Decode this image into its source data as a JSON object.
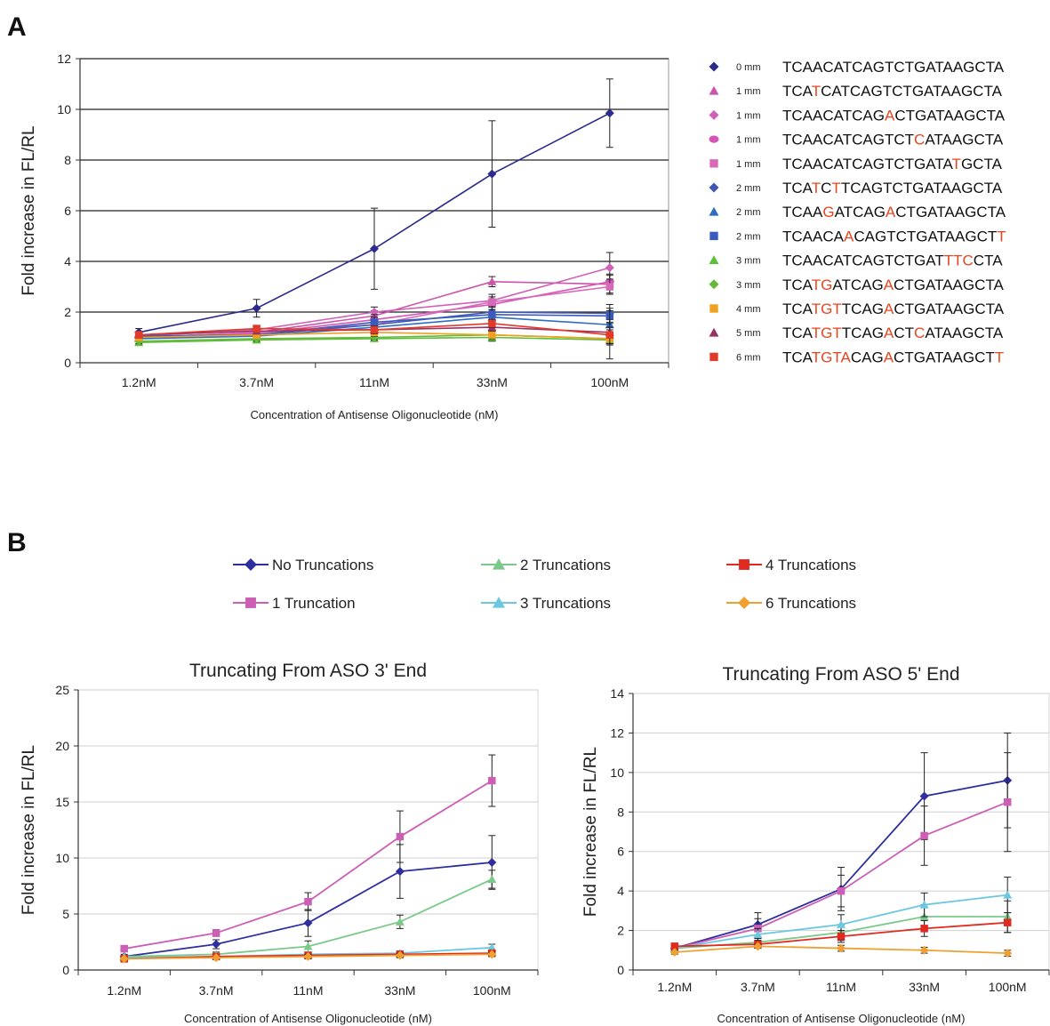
{
  "panels": {
    "a": "A",
    "b": "B"
  },
  "chart_data": [
    {
      "type": "line",
      "panel": "A",
      "title": "",
      "xlabel": "Concentration of Antisense Oligonucleotide (nM)",
      "ylabel": "Fold increase in FL/RL",
      "categories": [
        "1.2nM",
        "3.7nM",
        "11nM",
        "33nM",
        "100nM"
      ],
      "ylim": [
        0,
        12
      ],
      "yticks": [
        0,
        2,
        4,
        6,
        8,
        10,
        12
      ],
      "grid": true,
      "legend_position": "right",
      "series": [
        {
          "name": "0 mm",
          "sequence": "TCAACATCAGTCTGATAAGCTA",
          "mismatch_positions": [],
          "marker": "diamond",
          "color": "#2b2b8c",
          "values": [
            1.2,
            2.15,
            4.5,
            7.45,
            9.85
          ],
          "errors": [
            0.15,
            0.35,
            1.6,
            2.1,
            1.35
          ]
        },
        {
          "name": "1 mm",
          "sequence": "TCATCATCAGTCTGATAAGCTA",
          "mismatch_positions": [
            3
          ],
          "marker": "triangle",
          "color": "#cc55aa",
          "values": [
            1.0,
            1.2,
            1.85,
            3.2,
            3.1
          ],
          "errors": [
            0.1,
            0.15,
            0.2,
            0.2,
            0.35
          ]
        },
        {
          "name": "1 mm",
          "sequence": "TCAACATCAGACTGATAAGCTA",
          "mismatch_positions": [
            10
          ],
          "marker": "diamond",
          "color": "#d060b8",
          "values": [
            1.05,
            1.3,
            2.0,
            2.45,
            3.75
          ],
          "errors": [
            0.1,
            0.15,
            0.2,
            0.25,
            0.6
          ]
        },
        {
          "name": "1 mm",
          "sequence": "TCAACATCAGTCTCATAAGCTA",
          "mismatch_positions": [
            13
          ],
          "marker": "circle",
          "color": "#d455b5",
          "values": [
            1.0,
            1.15,
            1.7,
            2.3,
            3.2
          ],
          "errors": [
            0.1,
            0.15,
            0.2,
            0.2,
            0.3
          ]
        },
        {
          "name": "1 mm",
          "sequence": "TCAACATCAGTCTGATATGCTA",
          "mismatch_positions": [
            17
          ],
          "marker": "square",
          "color": "#d66ab8",
          "values": [
            1.0,
            1.2,
            1.5,
            2.4,
            3.0
          ],
          "errors": [
            0.1,
            0.15,
            0.2,
            0.2,
            0.3
          ]
        },
        {
          "name": "2 mm",
          "sequence": "TCATCTTCAGTCTGATAAGCTA",
          "mismatch_positions": [
            3,
            5
          ],
          "marker": "diamond",
          "color": "#3f57b5",
          "values": [
            1.0,
            1.1,
            1.5,
            2.0,
            1.95
          ],
          "errors": [
            0.1,
            0.15,
            0.2,
            0.2,
            0.35
          ]
        },
        {
          "name": "2 mm",
          "sequence": "TCAAGATCAGACTGATAAGCTA",
          "mismatch_positions": [
            4,
            10
          ],
          "marker": "triangle",
          "color": "#2c6fc0",
          "values": [
            0.95,
            1.05,
            1.4,
            1.8,
            1.5
          ],
          "errors": [
            0.1,
            0.1,
            0.15,
            0.2,
            0.2
          ]
        },
        {
          "name": "2 mm",
          "sequence": "TCAACAACAGTCTGATAAGCTT",
          "mismatch_positions": [
            6,
            21
          ],
          "marker": "square",
          "color": "#3a5bbd",
          "values": [
            1.05,
            1.1,
            1.6,
            1.9,
            1.85
          ],
          "errors": [
            0.1,
            0.1,
            0.2,
            0.2,
            0.3
          ]
        },
        {
          "name": "3 mm",
          "sequence": "TCAACATCAGTCTGATTTCCTA",
          "mismatch_positions": [
            16,
            17,
            18
          ],
          "marker": "triangle",
          "color": "#5bbf3a",
          "values": [
            0.8,
            0.9,
            0.95,
            1.0,
            0.9
          ],
          "errors": [
            0.1,
            0.1,
            0.1,
            0.15,
            0.2
          ]
        },
        {
          "name": "3 mm",
          "sequence": "TCATGATCAGACTGATAAGCTA",
          "mismatch_positions": [
            3,
            4,
            10
          ],
          "marker": "diamond",
          "color": "#68b83a",
          "values": [
            0.85,
            0.95,
            1.0,
            1.1,
            0.95
          ],
          "errors": [
            0.1,
            0.1,
            0.1,
            0.15,
            0.2
          ]
        },
        {
          "name": "4 mm",
          "sequence": "TCATGTTCAGACTGATAAGCTA",
          "mismatch_positions": [
            3,
            4,
            5,
            10
          ],
          "marker": "square",
          "color": "#f0a020",
          "values": [
            1.0,
            1.1,
            1.2,
            1.1,
            0.95
          ],
          "errors": [
            0.1,
            0.1,
            0.15,
            0.15,
            0.2
          ]
        },
        {
          "name": "5 mm",
          "sequence": "TCATGTTCAGACTCATAAGCTA",
          "mismatch_positions": [
            3,
            4,
            5,
            10,
            13
          ],
          "marker": "triangle",
          "color": "#993366",
          "values": [
            1.1,
            1.25,
            1.3,
            1.4,
            1.2
          ],
          "errors": [
            0.1,
            0.1,
            0.15,
            0.15,
            0.2
          ]
        },
        {
          "name": "6 mm",
          "sequence": "TCATGTACAGACTGATAAGCTT",
          "mismatch_positions": [
            3,
            4,
            5,
            6,
            10,
            21
          ],
          "marker": "square",
          "color": "#e03a2a",
          "values": [
            1.1,
            1.35,
            1.3,
            1.55,
            1.1
          ],
          "errors": [
            0.1,
            0.1,
            0.15,
            0.15,
            0.95
          ]
        }
      ]
    },
    {
      "type": "line",
      "panel": "B",
      "title": "Truncating From ASO 3' End",
      "xlabel": "Concentration of Antisense Oligonucleotide (nM)",
      "ylabel": "Fold increase in FL/RL",
      "categories": [
        "1.2nM",
        "3.7nM",
        "11nM",
        "33nM",
        "100nM"
      ],
      "ylim": [
        0,
        25
      ],
      "yticks": [
        0,
        5,
        10,
        15,
        20,
        25
      ],
      "grid": true,
      "series": [
        {
          "name": "No Truncations",
          "color": "#2e2e9e",
          "marker": "diamond",
          "values": [
            1.2,
            2.3,
            4.2,
            8.8,
            9.6
          ],
          "errors": [
            0.2,
            0.4,
            1.2,
            2.4,
            2.4
          ]
        },
        {
          "name": "1 Truncation",
          "color": "#cc5fb5",
          "marker": "square",
          "values": [
            1.9,
            3.3,
            6.1,
            11.9,
            16.9
          ],
          "errors": [
            0.2,
            0.3,
            0.8,
            2.3,
            2.3
          ]
        },
        {
          "name": "2 Truncations",
          "color": "#7ac98a",
          "marker": "triangle",
          "values": [
            1.2,
            1.4,
            2.1,
            4.3,
            8.1
          ],
          "errors": [
            0.1,
            0.2,
            0.5,
            0.6,
            0.8
          ]
        },
        {
          "name": "3 Truncations",
          "color": "#6cc8e0",
          "marker": "triangle",
          "values": [
            1.1,
            1.2,
            1.4,
            1.5,
            2.0
          ],
          "errors": [
            0.1,
            0.1,
            0.2,
            0.2,
            0.3
          ]
        },
        {
          "name": "4 Truncations",
          "color": "#e02a20",
          "marker": "square",
          "values": [
            1.0,
            1.2,
            1.3,
            1.4,
            1.5
          ],
          "errors": [
            0.1,
            0.1,
            0.2,
            0.2,
            0.2
          ]
        },
        {
          "name": "6 Truncations",
          "color": "#f0a030",
          "marker": "diamond",
          "values": [
            1.0,
            1.1,
            1.2,
            1.3,
            1.4
          ],
          "errors": [
            0.1,
            0.1,
            0.2,
            0.2,
            0.2
          ]
        }
      ]
    },
    {
      "type": "line",
      "panel": "B",
      "title": "Truncating From ASO 5' End",
      "xlabel": "Concentration of Antisense Oligonucleotide (nM)",
      "ylabel": "Fold increase in FL/RL",
      "categories": [
        "1.2nM",
        "3.7nM",
        "11nM",
        "33nM",
        "100nM"
      ],
      "ylim": [
        0,
        14
      ],
      "yticks": [
        0,
        2,
        4,
        6,
        8,
        10,
        12,
        14
      ],
      "grid": true,
      "series": [
        {
          "name": "No Truncations",
          "color": "#2e2e9e",
          "marker": "diamond",
          "values": [
            1.1,
            2.3,
            4.1,
            8.8,
            9.6
          ],
          "errors": [
            0.15,
            0.6,
            1.1,
            2.2,
            2.4
          ]
        },
        {
          "name": "1 Truncation",
          "color": "#cc5fb5",
          "marker": "square",
          "values": [
            1.1,
            2.1,
            4.0,
            6.8,
            8.5
          ],
          "errors": [
            0.15,
            0.5,
            0.8,
            1.5,
            2.5
          ]
        },
        {
          "name": "2 Truncations",
          "color": "#7ac98a",
          "marker": "triangle",
          "values": [
            1.1,
            1.4,
            1.9,
            2.7,
            2.7
          ],
          "errors": [
            0.1,
            0.2,
            0.4,
            0.6,
            0.8
          ]
        },
        {
          "name": "3 Truncations",
          "color": "#6cc8e0",
          "marker": "triangle",
          "values": [
            1.1,
            1.8,
            2.3,
            3.3,
            3.8
          ],
          "errors": [
            0.1,
            0.3,
            0.5,
            0.6,
            0.9
          ]
        },
        {
          "name": "4 Truncations",
          "color": "#e02a20",
          "marker": "square",
          "values": [
            1.2,
            1.3,
            1.7,
            2.1,
            2.4
          ],
          "errors": [
            0.1,
            0.2,
            0.3,
            0.4,
            0.5
          ]
        },
        {
          "name": "6 Truncations",
          "color": "#f0a030",
          "marker": "diamond",
          "values": [
            0.9,
            1.2,
            1.1,
            1.0,
            0.85
          ],
          "errors": [
            0.1,
            0.1,
            0.15,
            0.15,
            0.15
          ]
        }
      ]
    }
  ]
}
